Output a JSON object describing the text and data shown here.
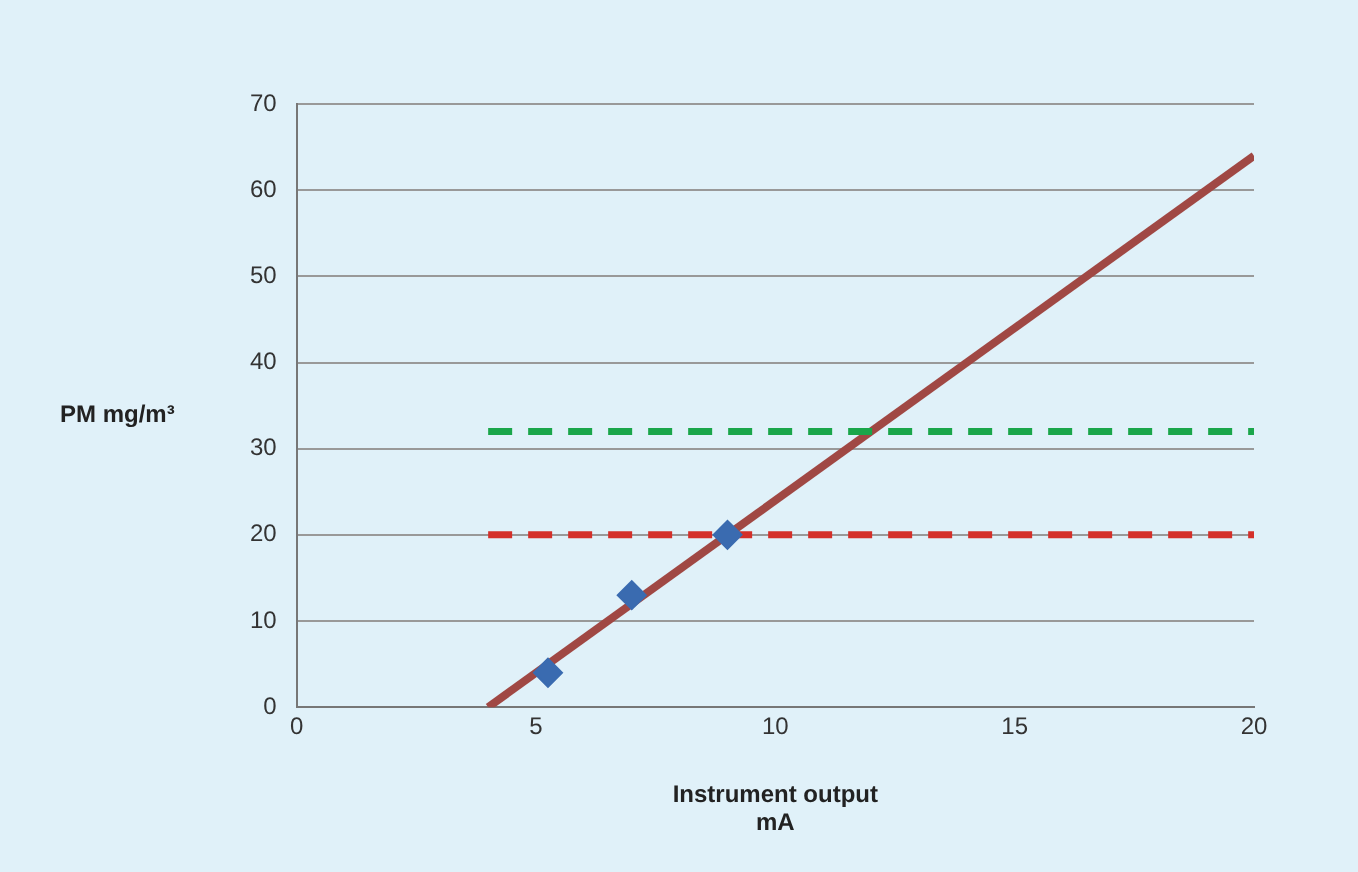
{
  "chart_data": {
    "type": "scatter",
    "xlabel": "Instrument output\nmA",
    "ylabel": "PM mg/m³",
    "xlim": [
      0,
      20
    ],
    "xticks": [
      0,
      5,
      10,
      15,
      20
    ],
    "ylim": [
      0,
      70
    ],
    "yticks": [
      0,
      10,
      20,
      30,
      40,
      50,
      60,
      70
    ],
    "grid": "y",
    "legend": false,
    "series": [
      {
        "type": "line",
        "x": [
          4,
          20
        ],
        "values": [
          0,
          64
        ],
        "color": "#a04844",
        "line_style": "solid",
        "marker": "none"
      },
      {
        "type": "line",
        "x": [
          4,
          20
        ],
        "values": [
          32,
          32
        ],
        "color": "#1aa64a",
        "line_style": "dashed",
        "marker": "none"
      },
      {
        "type": "line",
        "x": [
          4,
          20
        ],
        "values": [
          20,
          20
        ],
        "color": "#d4302a",
        "line_style": "dashed",
        "marker": "none"
      },
      {
        "type": "scatter",
        "x": [
          5.25,
          7,
          9
        ],
        "values": [
          4,
          13,
          20
        ],
        "color": "#3a6bb0",
        "marker": "diamond"
      }
    ]
  }
}
